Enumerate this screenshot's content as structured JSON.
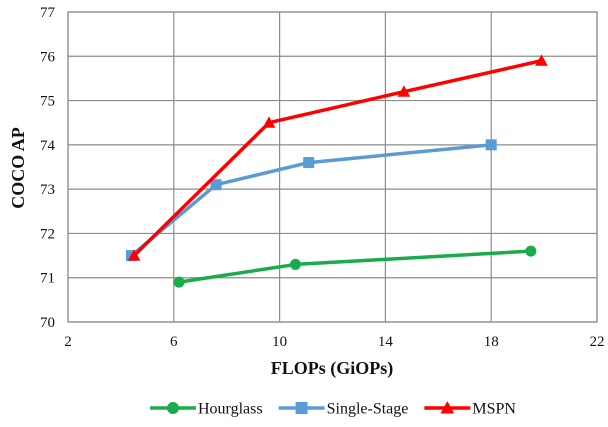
{
  "chart_data": {
    "type": "line",
    "xlabel": "FLOPs (GiOPs)",
    "ylabel": "COCO AP",
    "xlim": [
      2,
      22
    ],
    "ylim": [
      70,
      77
    ],
    "x_ticks": [
      "2",
      "6",
      "10",
      "14",
      "18",
      "22"
    ],
    "y_ticks": [
      "70",
      "71",
      "72",
      "73",
      "74",
      "75",
      "76",
      "77"
    ],
    "grid": true,
    "legend_position": "bottom",
    "series": [
      {
        "name": "Hourglass",
        "color": "#1aab4b",
        "marker": "circle",
        "x": [
          6.2,
          10.6,
          19.5
        ],
        "y": [
          70.9,
          71.3,
          71.6
        ]
      },
      {
        "name": "Single-Stage",
        "color": "#5b9bd5",
        "marker": "square",
        "x": [
          4.4,
          7.6,
          11.1,
          18.0
        ],
        "y": [
          71.5,
          73.1,
          73.6,
          74.0
        ]
      },
      {
        "name": "MSPN",
        "color": "#ff0000",
        "marker": "triangle",
        "x": [
          4.5,
          9.6,
          14.7,
          19.9
        ],
        "y": [
          71.5,
          74.5,
          75.2,
          75.9
        ]
      }
    ]
  }
}
